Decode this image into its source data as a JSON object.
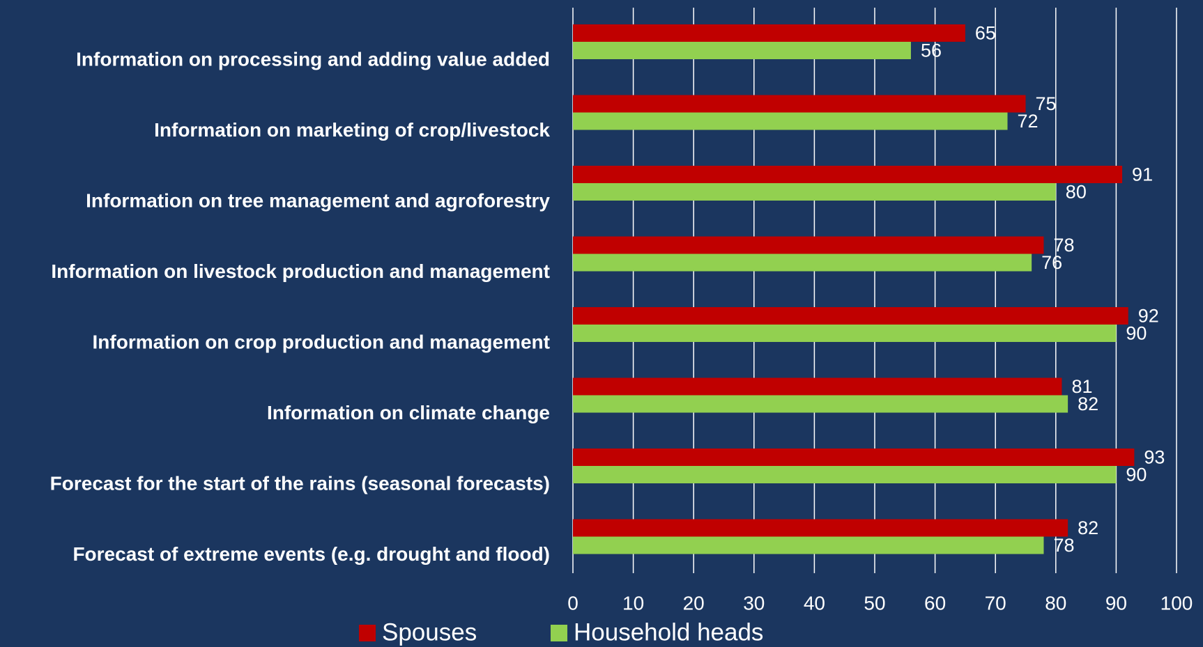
{
  "chart_data": {
    "type": "bar",
    "orientation": "horizontal",
    "categories": [
      "Information on processing and adding value added",
      "Information on marketing of crop/livestock",
      "Information on tree management and agroforestry",
      "Information on livestock production and management",
      "Information on crop production and management",
      "Information on climate change",
      "Forecast for the start of the rains (seasonal forecasts)",
      "Forecast of extreme events (e.g. drought and flood)"
    ],
    "series": [
      {
        "name": "Spouses",
        "color": "#c00000",
        "values": [
          65,
          75,
          91,
          78,
          92,
          81,
          93,
          82
        ]
      },
      {
        "name": "Household heads",
        "color": "#92d050",
        "values": [
          56,
          72,
          80,
          76,
          90,
          82,
          90,
          78
        ]
      }
    ],
    "xlim": [
      0,
      100
    ],
    "xticks": [
      0,
      10,
      20,
      30,
      40,
      50,
      60,
      70,
      80,
      90,
      100
    ],
    "grid": true,
    "legend": "bottom"
  }
}
